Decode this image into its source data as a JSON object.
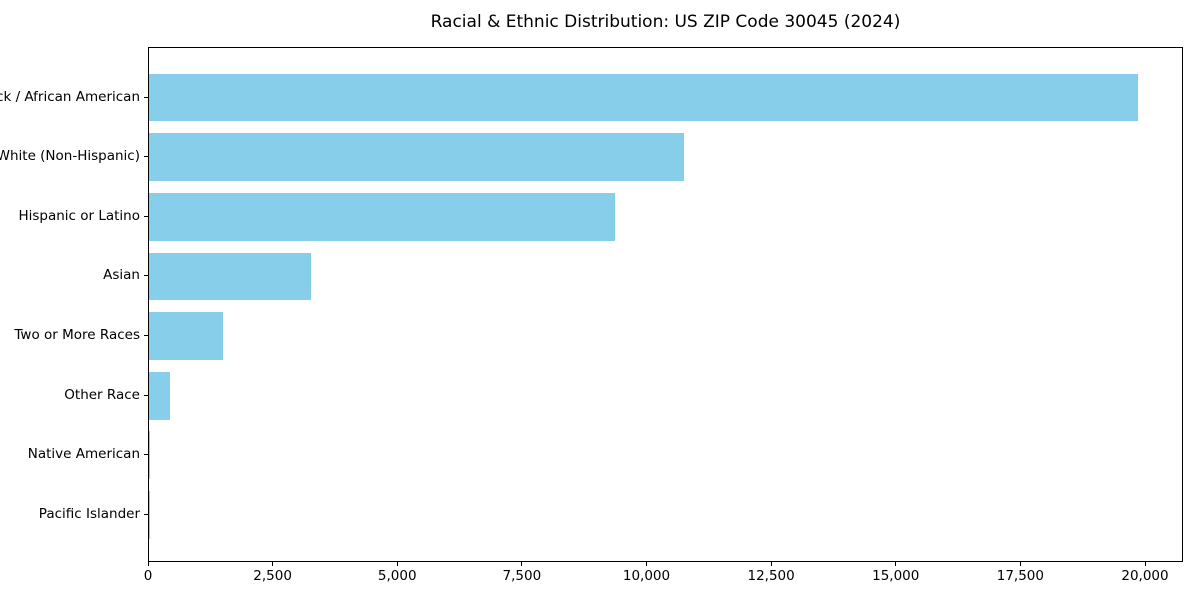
{
  "chart_data": {
    "type": "bar",
    "orientation": "horizontal",
    "title": "Racial & Ethnic Distribution: US ZIP Code 30045 (2024)",
    "categories": [
      "Black / African American",
      "White (Non-Hispanic)",
      "Hispanic or Latino",
      "Asian",
      "Two or More Races",
      "Other Race",
      "Native American",
      "Pacific Islander"
    ],
    "values": [
      19840,
      10730,
      9350,
      3250,
      1480,
      420,
      20,
      10
    ],
    "xlabel": "",
    "ylabel": "",
    "xlim": [
      0,
      20000
    ],
    "xticks": [
      0,
      2500,
      5000,
      7500,
      10000,
      12500,
      15000,
      17500,
      20000
    ],
    "xtick_labels": [
      "0",
      "2,500",
      "5,000",
      "7,500",
      "10,000",
      "12,500",
      "15,000",
      "17,500",
      "20,000"
    ],
    "grid": false,
    "legend": "none",
    "colors": {
      "bar_fill": "#87CEEB",
      "spine": "#000000",
      "text": "#000000",
      "background": "#ffffff"
    }
  }
}
